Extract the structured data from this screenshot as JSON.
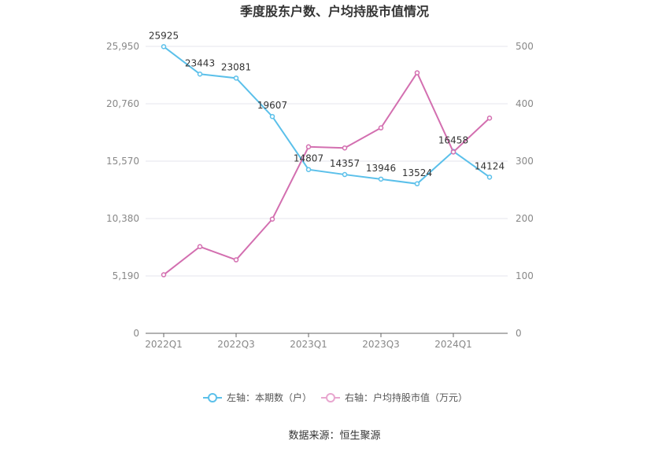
{
  "chart_data": {
    "type": "line",
    "title": "季度股东户数、户均持股市值情况",
    "categories": [
      "2022Q1",
      "2022Q2",
      "2022Q3",
      "2022Q4",
      "2023Q1",
      "2023Q2",
      "2023Q3",
      "2023Q4",
      "2024Q1",
      "2024Q2"
    ],
    "x_tick_labels": [
      "2022Q1",
      "",
      "2022Q3",
      "",
      "2023Q1",
      "",
      "2023Q3",
      "",
      "2024Q1",
      ""
    ],
    "left_axis": {
      "ticks": [
        "0",
        "5,190",
        "10,380",
        "15,570",
        "20,760",
        "25,950"
      ],
      "ylim": [
        0,
        25950
      ]
    },
    "right_axis": {
      "ticks": [
        "0",
        "100",
        "200",
        "300",
        "400",
        "500"
      ],
      "ylim": [
        0,
        500
      ]
    },
    "series": [
      {
        "name": "左轴：本期数（户）",
        "axis": "left",
        "color": "#5bc0ea",
        "values": [
          25925,
          23443,
          23081,
          19607,
          14807,
          14357,
          13946,
          13524,
          16458,
          14124
        ],
        "labels": [
          "25925",
          "23443",
          "23081",
          "19607",
          "14807",
          "14357",
          "13946",
          "13524",
          "16458",
          "14124"
        ]
      },
      {
        "name": "右轴：户均持股市值（万元）",
        "axis": "right",
        "color": "#d36fb0",
        "values": [
          102,
          151,
          128,
          199,
          325,
          323,
          358,
          454,
          316,
          375
        ]
      }
    ],
    "grid": true,
    "legend_position": "bottom"
  },
  "footer": {
    "source": "数据来源：恒生聚源"
  }
}
